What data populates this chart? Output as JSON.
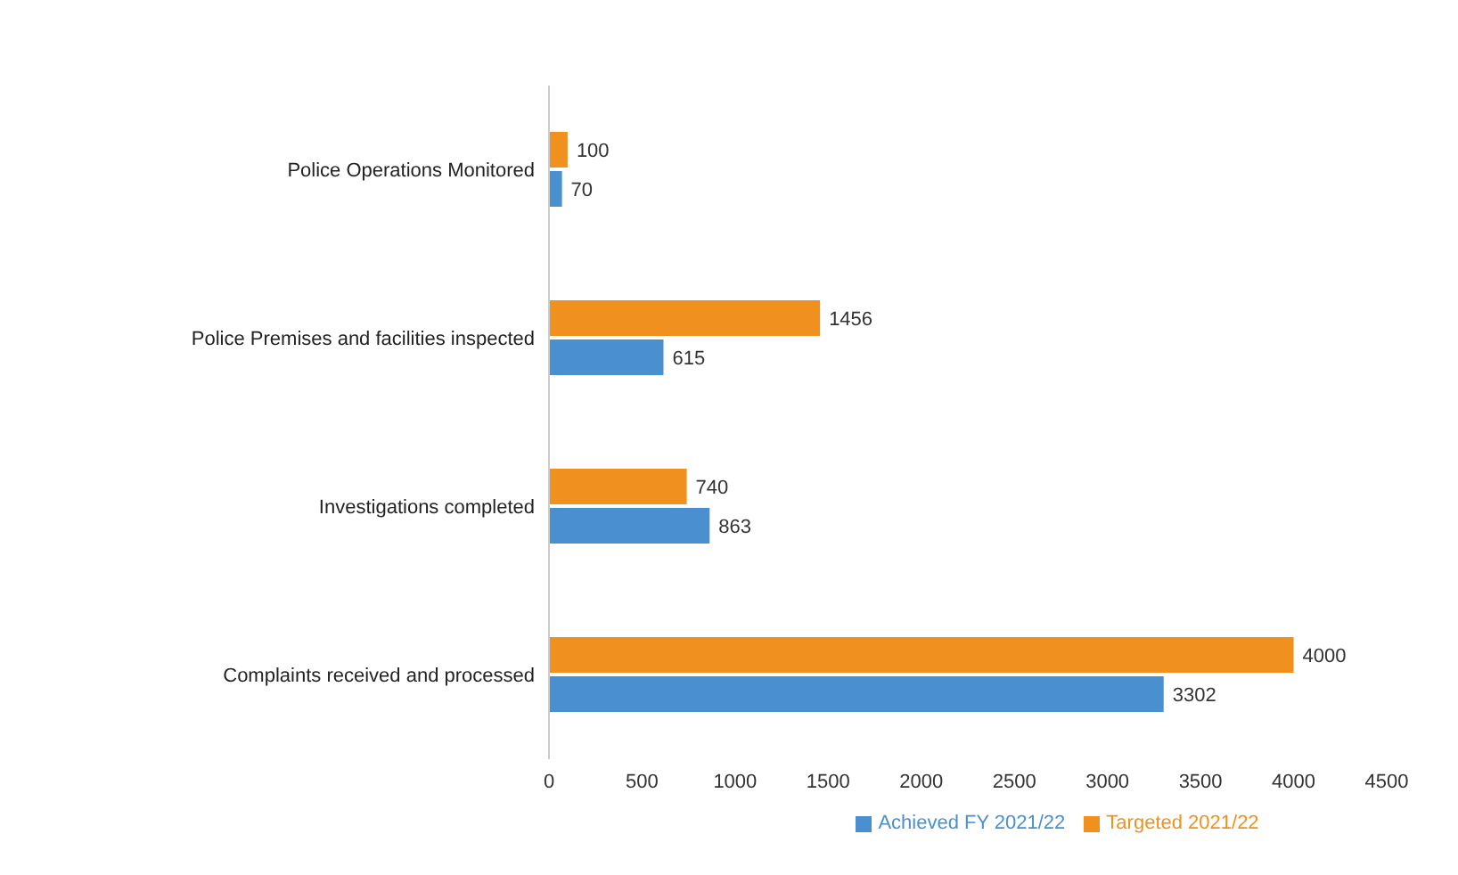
{
  "chart_data": {
    "type": "bar",
    "orientation": "horizontal",
    "categories": [
      "Police Operations Monitored",
      "Police Premises and facilities inspected",
      "Investigations completed",
      "Complaints received and processed"
    ],
    "series": [
      {
        "name": "Targeted 2021/22",
        "color": "#f0901e",
        "values": [
          100,
          1456,
          740,
          4000
        ]
      },
      {
        "name": "Achieved FY 2021/22",
        "color": "#4a90d0",
        "values": [
          70,
          615,
          863,
          3302
        ]
      }
    ],
    "xlim": [
      0,
      4500
    ],
    "xticks": [
      0,
      500,
      1000,
      1500,
      2000,
      2500,
      3000,
      3500,
      4000,
      4500
    ],
    "grid": false,
    "legend": "bottom",
    "data_labels": true
  }
}
